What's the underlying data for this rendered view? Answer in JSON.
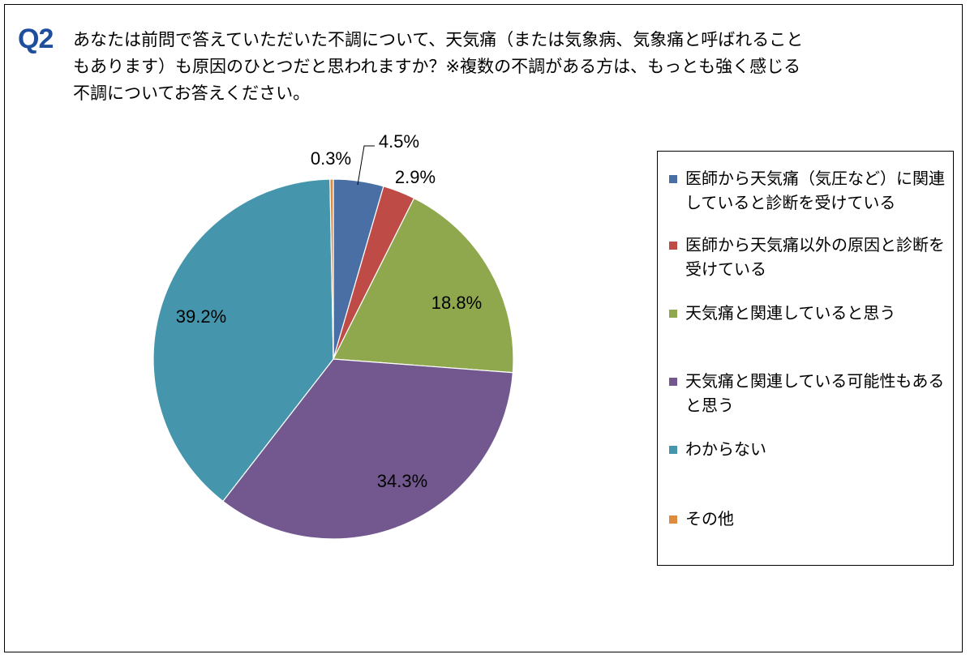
{
  "question": {
    "number": "Q2",
    "text": "あなたは前問で答えていただいた不調について、天気痛（または気象病、気象痛と呼ばれることもあります）も原因のひとつだと思われますか？※複数の不調がある方は、もっとも強く感じる不調についてお答えください。"
  },
  "chart_data": {
    "type": "pie",
    "title": "",
    "legend_position": "right",
    "slices": [
      {
        "label": "医師から天気痛（気圧など）に関連していると診断を受けている",
        "value": 4.5,
        "display": "4.5%",
        "color": "#4a6fa5"
      },
      {
        "label": "医師から天気痛以外の原因と診断を受けている",
        "value": 2.9,
        "display": "2.9%",
        "color": "#bf4b47"
      },
      {
        "label": "天気痛と関連していると思う",
        "value": 18.8,
        "display": "18.8%",
        "color": "#8fa84d"
      },
      {
        "label": "天気痛と関連している可能性もあると思う",
        "value": 34.3,
        "display": "34.3%",
        "color": "#72588f"
      },
      {
        "label": "わからない",
        "value": 39.2,
        "display": "39.2%",
        "color": "#4596ad"
      },
      {
        "label": "その他",
        "value": 0.3,
        "display": "0.3%",
        "color": "#de8a3f"
      }
    ]
  }
}
